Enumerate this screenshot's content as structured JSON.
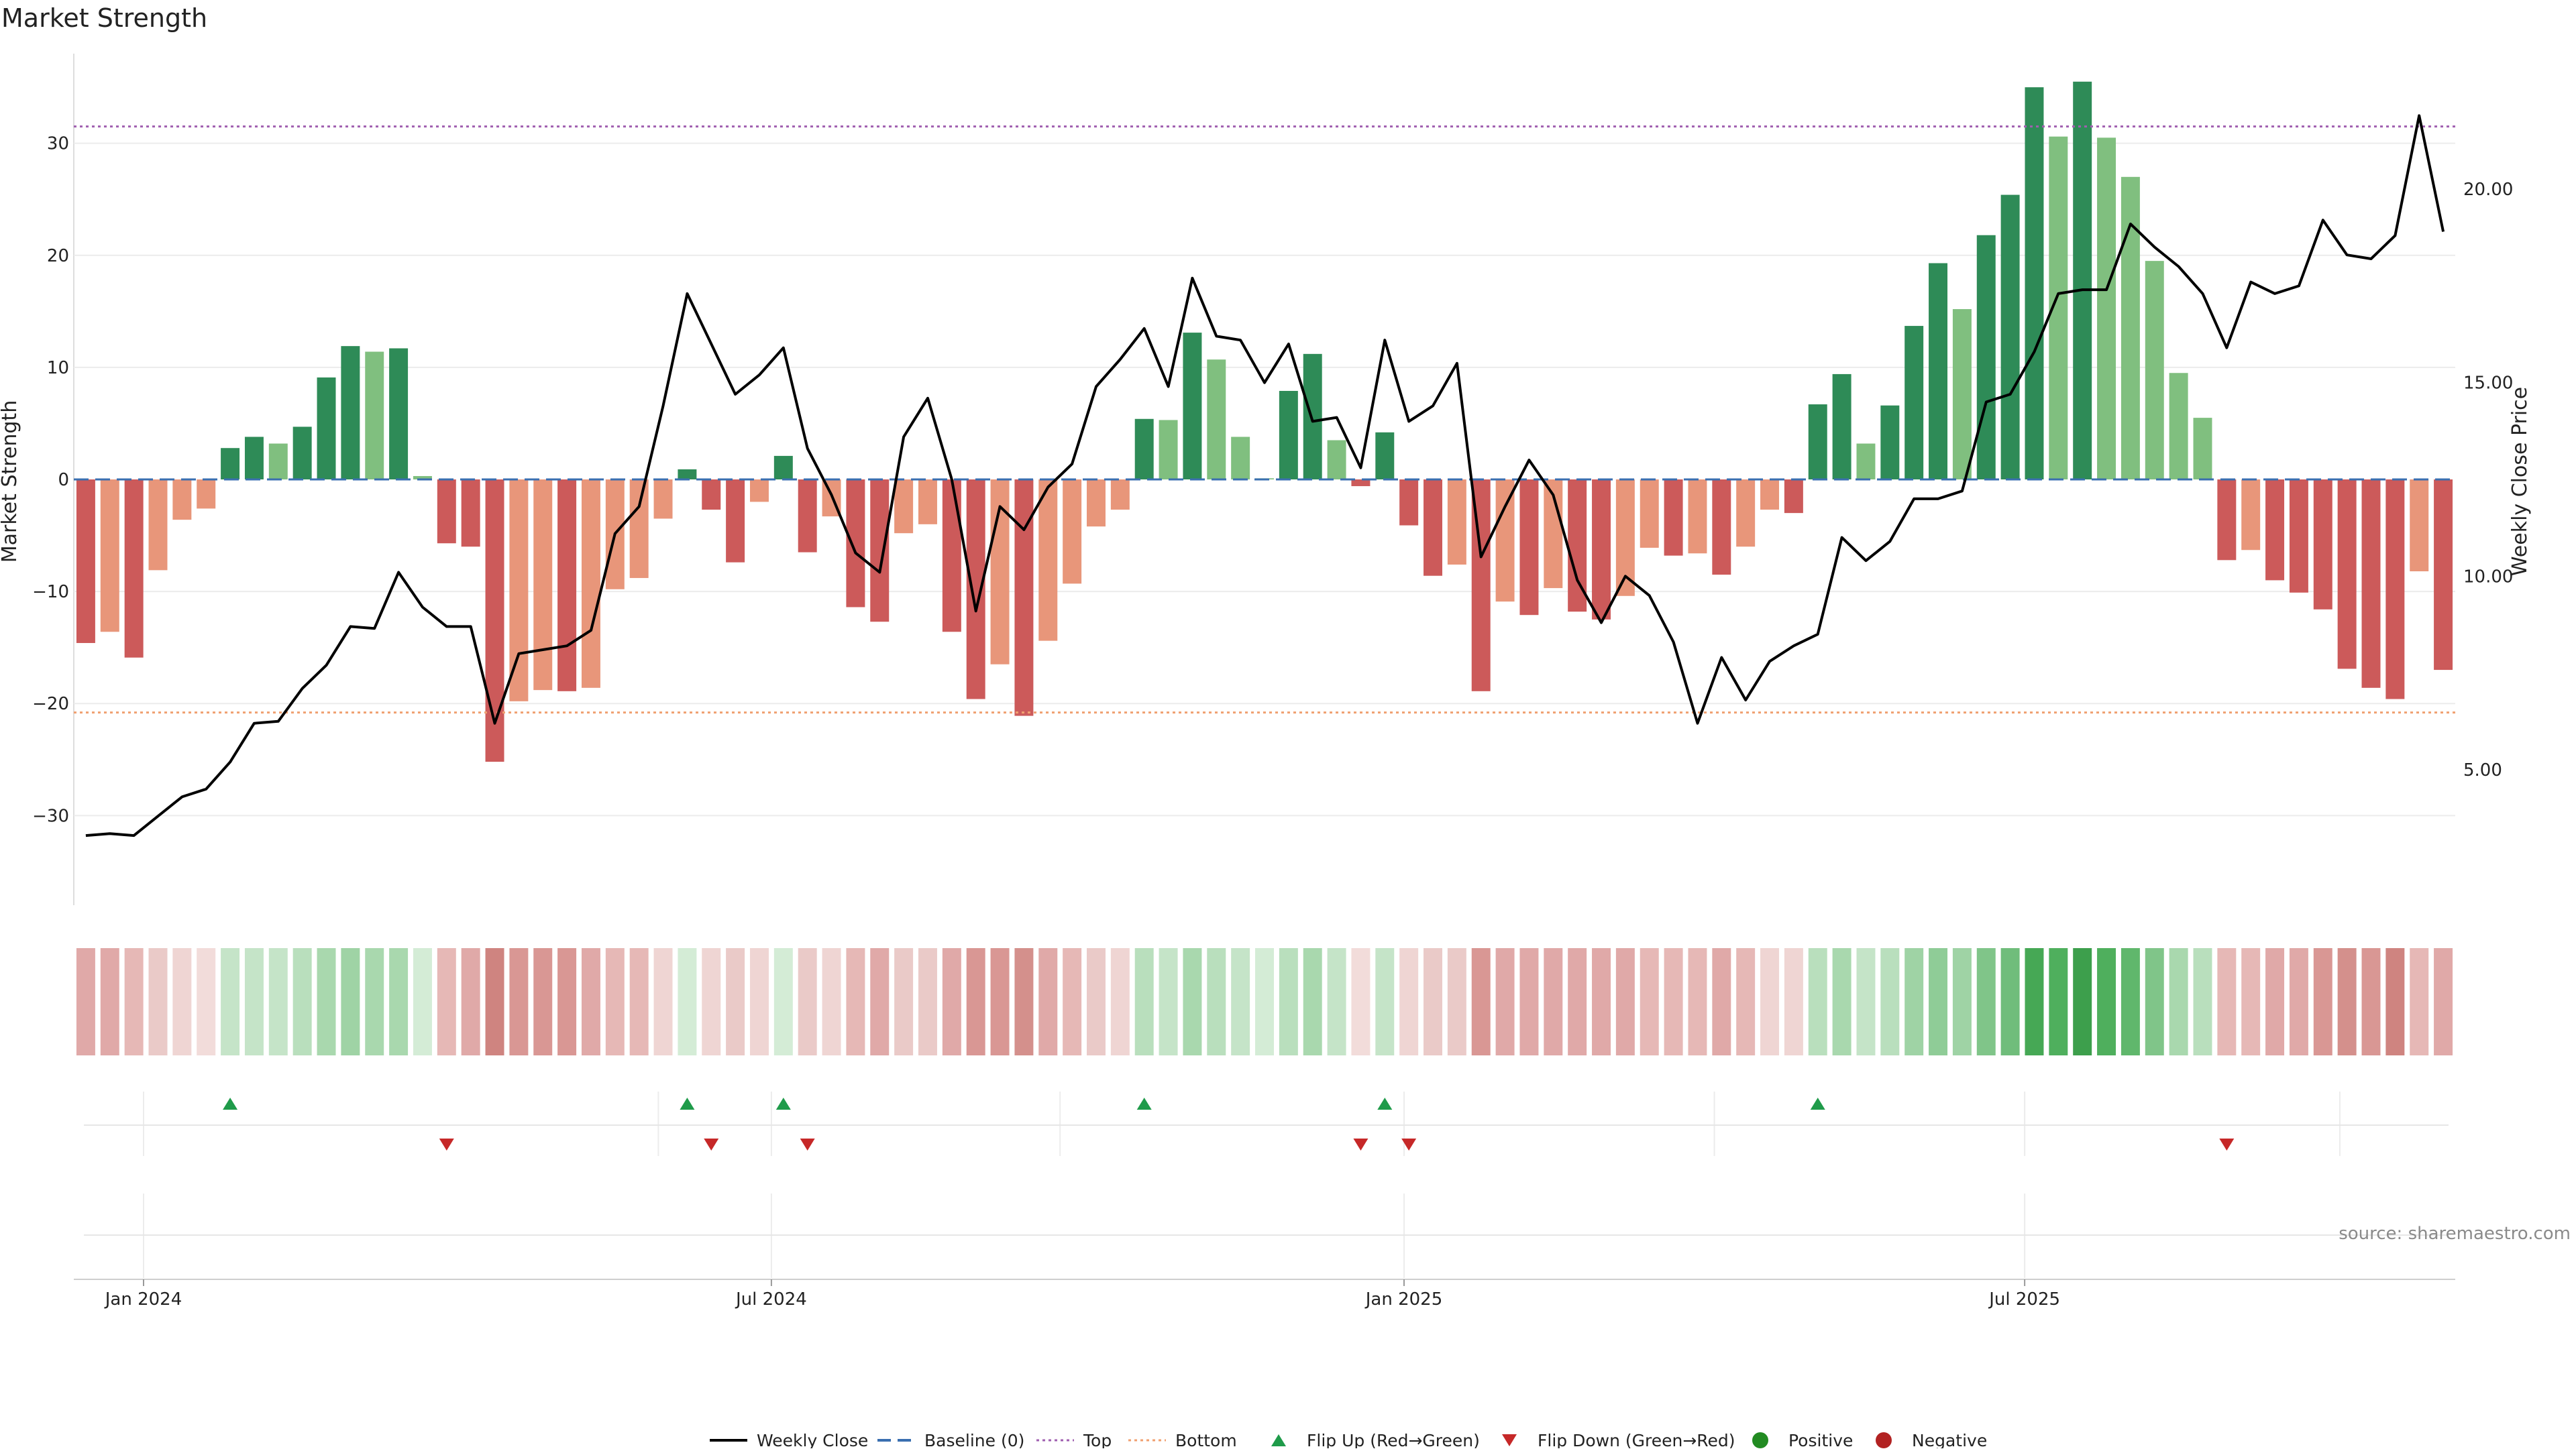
{
  "title": "Market Strength",
  "source": "source: sharemaestro.com",
  "chart_data": {
    "type": "bar",
    "ylabel": "Market Strength",
    "y2label": "Weekly Close Price",
    "ylim": [
      -38,
      38
    ],
    "y2lim": [
      1.5,
      23.5
    ],
    "yticks": [
      30,
      20,
      10,
      0,
      -10,
      -20,
      -30
    ],
    "ytick_labels": [
      "30",
      "20",
      "10",
      "0",
      "−10",
      "−20",
      "−30"
    ],
    "y2ticks": [
      20,
      15,
      10,
      5
    ],
    "y2tick_labels": [
      "20.00",
      "15.00",
      "10.00",
      "5.00"
    ],
    "xticks": [
      {
        "index": 2.4,
        "label": "Jan 2024"
      },
      {
        "index": 28.5,
        "label": "Jul 2024"
      },
      {
        "index": 54.8,
        "label": "Jan 2025"
      },
      {
        "index": 80.6,
        "label": "Jul 2025"
      }
    ],
    "top_line": 31.5,
    "bottom_line": -20.8,
    "values": [
      -14.6,
      -13.6,
      -15.9,
      -8.1,
      -3.6,
      -2.6,
      2.8,
      3.8,
      3.2,
      4.7,
      9.1,
      11.9,
      11.4,
      11.7,
      0.3,
      -5.7,
      -6.0,
      -25.2,
      -19.8,
      -18.8,
      -18.9,
      -18.6,
      -9.8,
      -8.8,
      -3.5,
      0.9,
      -2.7,
      -7.4,
      -2.0,
      2.1,
      -6.5,
      -3.3,
      -11.4,
      -12.7,
      -4.8,
      -4.0,
      -13.6,
      -19.6,
      -16.5,
      -21.1,
      -14.4,
      -9.3,
      -4.2,
      -2.7,
      5.4,
      5.3,
      13.1,
      10.7,
      3.8,
      0.1,
      7.9,
      11.2,
      3.5,
      -0.6,
      4.2,
      -4.1,
      -8.6,
      -7.6,
      -18.9,
      -10.9,
      -12.1,
      -9.7,
      -11.8,
      -12.5,
      -10.4,
      -6.1,
      -6.8,
      -6.6,
      -8.5,
      -6.0,
      -2.7,
      -3.0,
      6.7,
      9.4,
      3.2,
      6.6,
      13.7,
      19.3,
      15.2,
      21.8,
      25.4,
      35.0,
      30.6,
      35.5,
      30.5,
      27.0,
      19.5,
      9.5,
      5.5,
      -7.2,
      -6.3,
      -9.0,
      -10.1,
      -11.6,
      -16.9,
      -18.6,
      -19.6,
      -8.2,
      -17.0
    ],
    "tones": [
      2,
      1,
      2,
      1,
      1,
      1,
      2,
      2,
      1,
      2,
      2,
      2,
      1,
      2,
      1,
      2,
      2,
      2,
      1,
      1,
      2,
      1,
      1,
      1,
      1,
      2,
      2,
      2,
      1,
      2,
      2,
      1,
      2,
      2,
      1,
      1,
      2,
      2,
      1,
      2,
      1,
      1,
      1,
      1,
      2,
      1,
      2,
      1,
      1,
      1,
      2,
      2,
      1,
      2,
      2,
      2,
      2,
      1,
      2,
      1,
      2,
      1,
      2,
      2,
      1,
      1,
      2,
      1,
      2,
      1,
      1,
      2,
      2,
      2,
      1,
      2,
      2,
      2,
      1,
      2,
      2,
      2,
      1,
      2,
      1,
      1,
      1,
      1,
      1,
      2,
      1,
      2,
      2,
      2,
      2,
      2,
      2,
      1,
      2
    ],
    "price": [
      3.3,
      3.35,
      3.3,
      3.8,
      4.3,
      4.5,
      5.2,
      6.2,
      6.25,
      7.1,
      7.7,
      8.7,
      8.65,
      10.1,
      9.2,
      8.7,
      8.7,
      6.2,
      8.0,
      8.1,
      8.2,
      8.6,
      11.1,
      11.8,
      14.4,
      17.3,
      16.0,
      14.7,
      15.2,
      15.9,
      13.3,
      12.1,
      10.6,
      10.1,
      13.6,
      14.6,
      12.5,
      9.1,
      11.8,
      11.2,
      12.3,
      12.9,
      14.9,
      15.6,
      16.4,
      14.9,
      17.7,
      16.2,
      16.1,
      15.0,
      16.0,
      14.0,
      14.1,
      12.8,
      16.1,
      14.0,
      14.4,
      15.5,
      10.5,
      11.8,
      13.0,
      12.1,
      9.9,
      8.8,
      10.0,
      9.5,
      8.3,
      6.2,
      7.9,
      6.8,
      7.8,
      8.2,
      8.5,
      11.0,
      10.4,
      10.9,
      12.0,
      12.0,
      12.2,
      14.5,
      14.7,
      15.8,
      17.3,
      17.4,
      17.4,
      19.1,
      18.5,
      18.0,
      17.3,
      15.9,
      17.6,
      17.3,
      17.5,
      19.2,
      18.3,
      18.2,
      18.8,
      21.9,
      18.9
    ],
    "strip_colors": [
      "#e0a9a8",
      "#e0a9a8",
      "#e6b8b6",
      "#eacac8",
      "#efd5d3",
      "#f2dcda",
      "#c5e4c8",
      "#c5e4c8",
      "#c5e4c8",
      "#b9dfbd",
      "#a9d8ae",
      "#9fd3a5",
      "#a9d8ae",
      "#a9d8ae",
      "#d4ecd6",
      "#e6b8b6",
      "#e0a9a8",
      "#cf8480",
      "#d99794",
      "#d99794",
      "#d99794",
      "#e0a9a8",
      "#e6b8b6",
      "#e6b8b6",
      "#efd5d3",
      "#d4ecd6",
      "#efd5d3",
      "#eacac8",
      "#efd5d3",
      "#d4ecd6",
      "#eacac8",
      "#efd5d3",
      "#e6b8b6",
      "#e0a9a8",
      "#eacac8",
      "#eacac8",
      "#e0a9a8",
      "#d99794",
      "#d99794",
      "#d4908c",
      "#e0a9a8",
      "#e6b8b6",
      "#eacac8",
      "#efd5d3",
      "#b9dfbd",
      "#c5e4c8",
      "#a9d8ae",
      "#b9dfbd",
      "#c5e4c8",
      "#d4ecd6",
      "#b9dfbd",
      "#a9d8ae",
      "#c5e4c8",
      "#f2dcda",
      "#c5e4c8",
      "#efd5d3",
      "#eacac8",
      "#eacac8",
      "#d99794",
      "#e0a9a8",
      "#e0a9a8",
      "#e0a9a8",
      "#e0a9a8",
      "#e0a9a8",
      "#e0a9a8",
      "#e6b8b6",
      "#e6b8b6",
      "#e6b8b6",
      "#e0a9a8",
      "#e6b8b6",
      "#efd5d3",
      "#efd5d3",
      "#b9dfbd",
      "#a9d8ae",
      "#c5e4c8",
      "#b9dfbd",
      "#9fd3a5",
      "#8fcc97",
      "#9fd3a5",
      "#80c589",
      "#70bd7b",
      "#46a855",
      "#4faf5d",
      "#3d9f4c",
      "#4faf5d",
      "#60b76c",
      "#80c589",
      "#a9d8ae",
      "#b9dfbd",
      "#e6b8b6",
      "#e6b8b6",
      "#e0a9a8",
      "#e0a9a8",
      "#d99794",
      "#d4908c",
      "#d99794",
      "#cf8480",
      "#e6b8b6",
      "#e0a9a8"
    ],
    "flip_up": [
      6,
      25,
      29,
      44,
      54,
      72
    ],
    "flip_down": [
      15,
      26,
      30,
      53,
      55,
      89
    ],
    "colors": {
      "pos_dark": "#2e8b57",
      "pos_light": "#80bf7f",
      "neg_dark": "#cc5a5a",
      "neg_light": "#e8967a",
      "price_line": "#000000",
      "baseline": "#3a6fb0",
      "top": "#a05fb0",
      "bottom": "#f0a070",
      "flip_up": "#1f9b4a",
      "flip_down": "#c62828",
      "positive": "#228b22",
      "negative": "#b22222"
    },
    "legend": {
      "weekly_close": "Weekly Close",
      "baseline": "Baseline (0)",
      "top": "Top",
      "bottom": "Bottom",
      "flip_up": "Flip Up (Red→Green)",
      "flip_down": "Flip Down (Green→Red)",
      "positive": "Positive",
      "negative": "Negative"
    }
  }
}
